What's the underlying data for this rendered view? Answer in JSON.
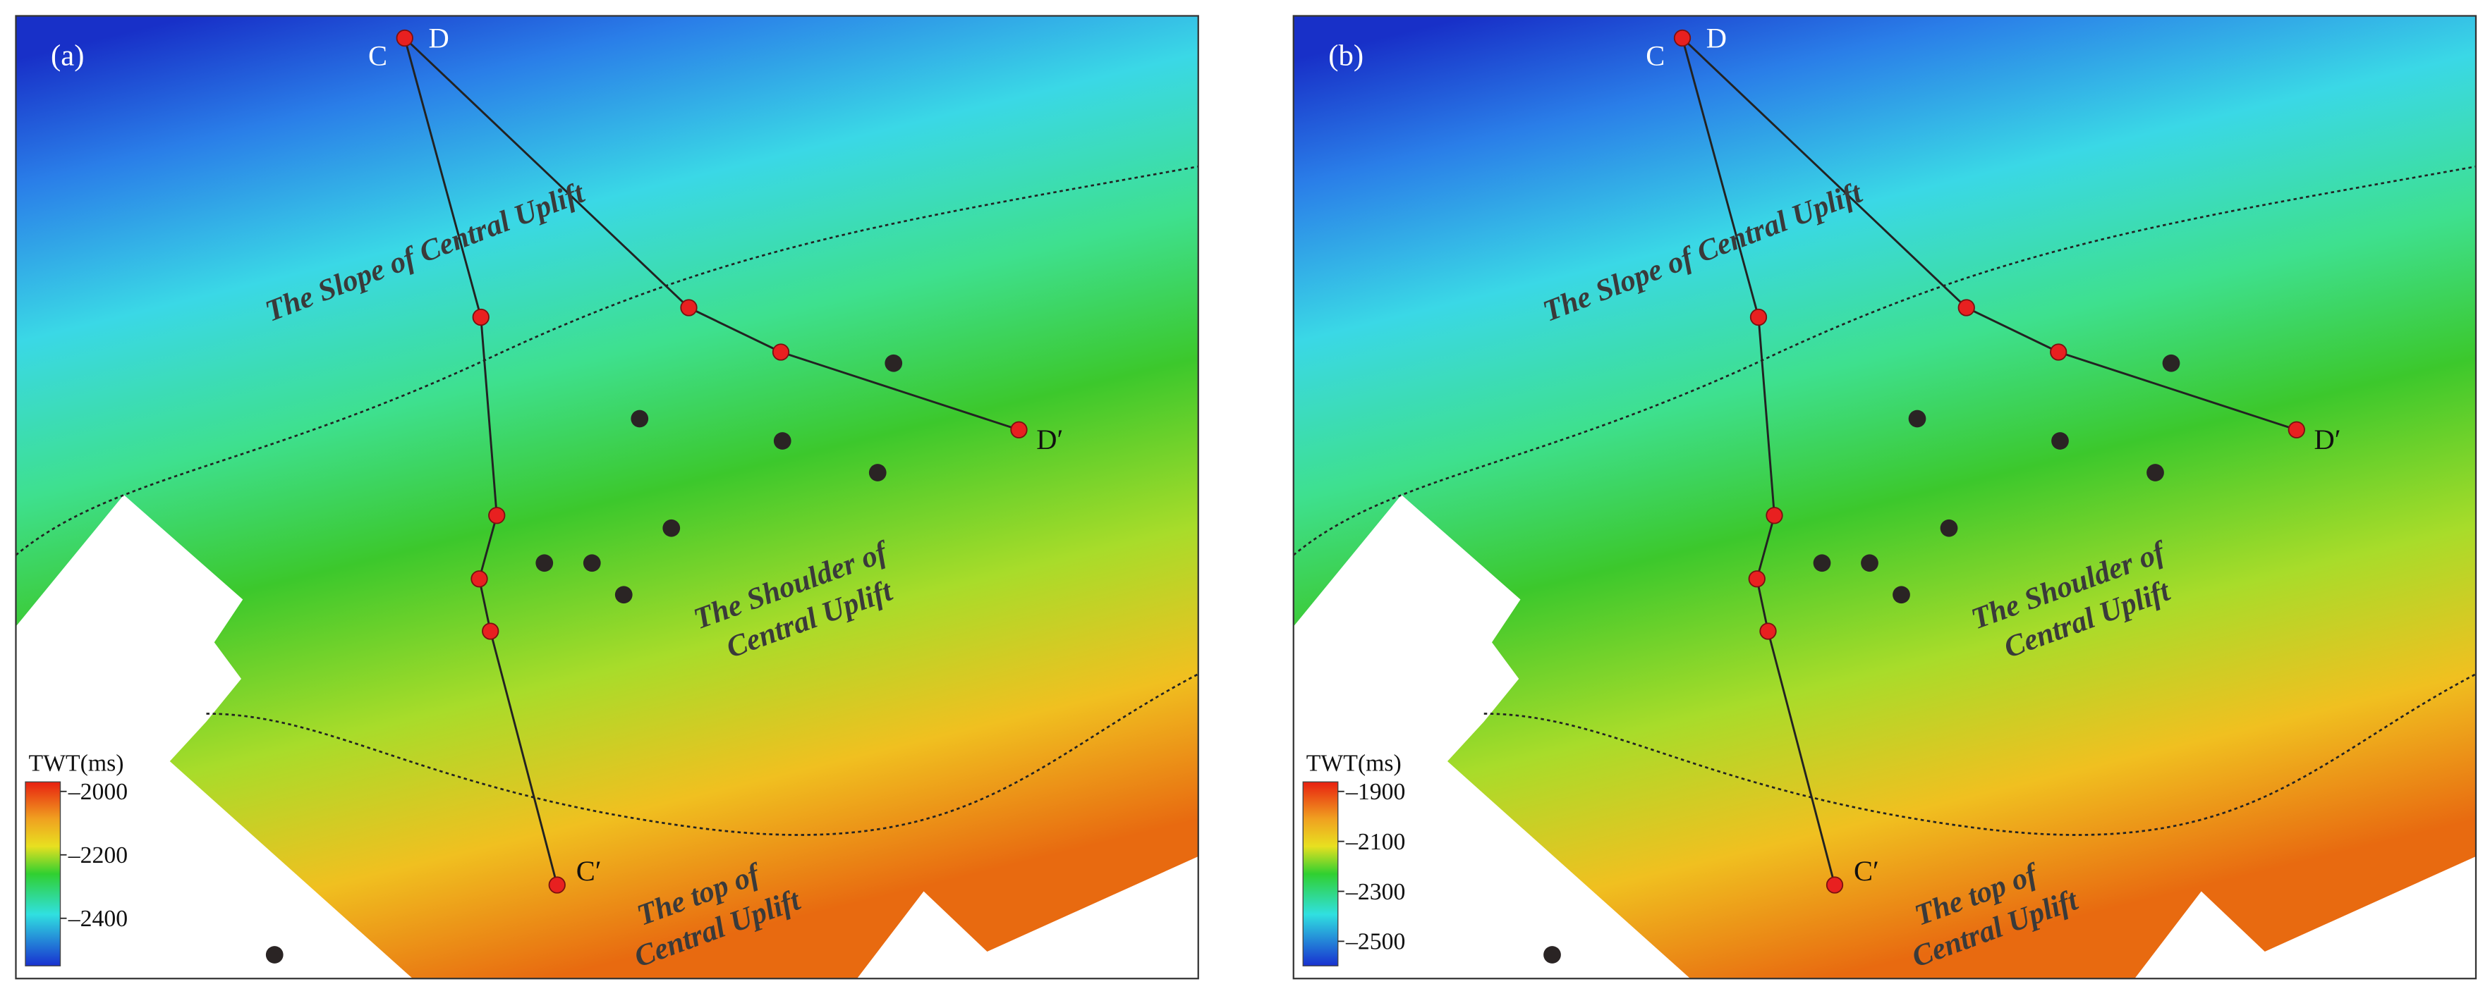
{
  "panels": [
    {
      "label": "(a)",
      "colorbar": {
        "title": "TWT(ms)",
        "ticks": [
          "–2000",
          "–2200",
          "–2400"
        ]
      },
      "regions": {
        "slope": "The Slope of Central Uplift",
        "shoulder": [
          "The Shoulder of",
          "Central Uplift"
        ],
        "top": [
          "The top of",
          "Central Uplift"
        ]
      },
      "points": {
        "c": "C",
        "d": "D",
        "c_end": "C′",
        "d_end": "D′"
      }
    },
    {
      "label": "(b)",
      "colorbar": {
        "title": "TWT(ms)",
        "ticks": [
          "–1900",
          "–2100",
          "–2300",
          "–2500"
        ]
      },
      "regions": {
        "slope": "The Slope of Central Uplift",
        "shoulder": [
          "The Shoulder of",
          "Central Uplift"
        ],
        "top": [
          "The top of",
          "Central Uplift"
        ]
      },
      "points": {
        "c": "C",
        "d": "D",
        "c_end": "C′",
        "d_end": "D′"
      }
    }
  ]
}
